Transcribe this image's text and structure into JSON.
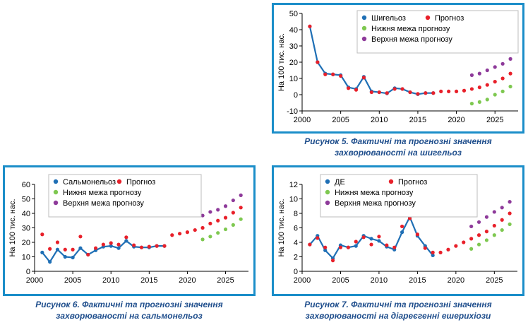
{
  "colors": {
    "frame": "#1b8ec9",
    "actual": "#1f6fb5",
    "forecast": "#e8202a",
    "lower": "#7ec850",
    "upper": "#8e3a9a",
    "caption": "#1f4e8c"
  },
  "chart_data": [
    {
      "id": "fig5",
      "type": "line",
      "caption_line1": "Рисунок 5.  Фактичні та прогнозні значення",
      "caption_line2": "захворюваності на шигельоз",
      "ylabel": "На 100 тис. нас.",
      "xlabel": "",
      "xlim": [
        2000,
        2028
      ],
      "ylim": [
        -10,
        50
      ],
      "xticks": [
        2000,
        2005,
        2010,
        2015,
        2020,
        2025
      ],
      "yticks": [
        -10,
        0,
        10,
        20,
        30,
        40,
        50
      ],
      "grid": false,
      "legend_position": "top-right",
      "legend": {
        "actual": "Шигельоз",
        "forecast": "Прогноз",
        "lower": "Нижня межа прогнозу",
        "upper": "Верхня межа прогнозу"
      },
      "series": [
        {
          "name": "Шигельоз",
          "role": "actual",
          "x": [
            2001,
            2002,
            2003,
            2004,
            2005,
            2006,
            2007,
            2008,
            2009,
            2010,
            2011,
            2012,
            2013,
            2014,
            2015,
            2016,
            2017
          ],
          "y": [
            42,
            20,
            13,
            12.5,
            12,
            4.5,
            3.5,
            11,
            2,
            1.5,
            0.8,
            4,
            3.5,
            1.5,
            0.3,
            1,
            1
          ]
        },
        {
          "name": "Прогноз",
          "role": "forecast",
          "x": [
            2001,
            2002,
            2003,
            2004,
            2005,
            2006,
            2007,
            2008,
            2009,
            2010,
            2011,
            2012,
            2013,
            2014,
            2015,
            2016,
            2017,
            2018,
            2019,
            2020,
            2021,
            2022,
            2023,
            2024,
            2025,
            2026,
            2027
          ],
          "y": [
            42,
            20,
            12.5,
            12.5,
            11.5,
            4,
            3,
            10.5,
            1.5,
            1.5,
            1,
            3.5,
            3.5,
            1.5,
            0.5,
            1,
            1,
            2,
            2,
            2,
            2.5,
            3.5,
            4.5,
            6,
            8,
            10,
            13
          ]
        },
        {
          "name": "Нижня межа прогнозу",
          "role": "lower",
          "x": [
            2022,
            2023,
            2024,
            2025,
            2026,
            2027
          ],
          "y": [
            -5.5,
            -4.5,
            -3,
            0,
            2,
            5
          ]
        },
        {
          "name": "Верхня межа прогнозу",
          "role": "upper",
          "x": [
            2022,
            2023,
            2024,
            2025,
            2026,
            2027
          ],
          "y": [
            12,
            13,
            15,
            17,
            19,
            22
          ]
        }
      ]
    },
    {
      "id": "fig6",
      "type": "line",
      "caption_line1": "Рисунок 6. Фактичні та прогнозні значення",
      "caption_line2": "захворюваності на сальмонельоз",
      "ylabel": "На 100 тис. нас.",
      "xlabel": "",
      "xlim": [
        2000,
        2028
      ],
      "ylim": [
        0,
        60
      ],
      "xticks": [
        2000,
        2005,
        2010,
        2015,
        2020,
        2025
      ],
      "yticks": [
        0,
        10,
        20,
        30,
        40,
        50,
        60
      ],
      "grid": false,
      "legend_position": "top-left",
      "legend": {
        "actual": "Сальмонельоз",
        "forecast": "Прогноз",
        "lower": "Нижня межа прогнозу",
        "upper": "Верхня межа прогнозу"
      },
      "series": [
        {
          "name": "Сальмонельоз",
          "role": "actual",
          "x": [
            2001,
            2002,
            2003,
            2004,
            2005,
            2006,
            2007,
            2008,
            2009,
            2010,
            2011,
            2012,
            2013,
            2014,
            2015,
            2016,
            2017
          ],
          "y": [
            13,
            6.5,
            15,
            10,
            9.5,
            16,
            11.5,
            14.5,
            17,
            17.5,
            16,
            21,
            17,
            16.5,
            16.5,
            17.5,
            17.5
          ]
        },
        {
          "name": "Прогноз",
          "role": "forecast",
          "x": [
            2001,
            2002,
            2003,
            2004,
            2005,
            2006,
            2007,
            2008,
            2009,
            2010,
            2011,
            2012,
            2013,
            2014,
            2015,
            2016,
            2017,
            2018,
            2019,
            2020,
            2021,
            2022,
            2023,
            2024,
            2025,
            2026,
            2027
          ],
          "y": [
            25.5,
            15.5,
            20,
            15,
            15,
            24,
            11.5,
            16,
            18.5,
            19.5,
            18.5,
            23.5,
            18,
            16.5,
            17,
            17.5,
            17.5,
            25,
            26,
            27,
            28.5,
            30,
            33,
            35,
            37,
            40.5,
            44
          ]
        },
        {
          "name": "Нижня межа прогнозу",
          "role": "lower",
          "x": [
            2022,
            2023,
            2024,
            2025,
            2026,
            2027
          ],
          "y": [
            22,
            24,
            26.5,
            29,
            32,
            36
          ]
        },
        {
          "name": "Верхня межа прогнозу",
          "role": "upper",
          "x": [
            2022,
            2023,
            2024,
            2025,
            2026,
            2027
          ],
          "y": [
            38.5,
            41,
            42.5,
            45,
            49,
            52.5
          ]
        }
      ]
    },
    {
      "id": "fig7",
      "type": "line",
      "caption_line1": "Рисунок 7. Фактичні та прогнозні значення",
      "caption_line2": "захворюваності на діареєгенні ешерихіози",
      "ylabel": "На 100 тис. нас.",
      "xlabel": "",
      "xlim": [
        2000,
        2028
      ],
      "ylim": [
        0,
        12
      ],
      "xticks": [
        2000,
        2005,
        2010,
        2015,
        2020,
        2025
      ],
      "yticks": [
        0,
        2,
        4,
        6,
        8,
        10,
        12
      ],
      "grid": false,
      "legend_position": "top-left",
      "legend": {
        "actual": "ДЕ",
        "forecast": "Прогноз",
        "lower": "Нижня межа прогнозу",
        "upper": "Верхня межа прогнозу"
      },
      "series": [
        {
          "name": "ДЕ",
          "role": "actual",
          "x": [
            2001,
            2002,
            2003,
            2004,
            2005,
            2006,
            2007,
            2008,
            2009,
            2010,
            2011,
            2012,
            2013,
            2014,
            2015,
            2016,
            2017
          ],
          "y": [
            3.7,
            4.9,
            2.9,
            1.8,
            3.6,
            3.3,
            3.5,
            4.9,
            4.5,
            4.2,
            3.4,
            3,
            5.4,
            7.5,
            4.9,
            3.5,
            2.2
          ]
        },
        {
          "name": "Прогноз",
          "role": "forecast",
          "x": [
            2001,
            2002,
            2003,
            2004,
            2005,
            2006,
            2007,
            2008,
            2009,
            2010,
            2011,
            2012,
            2013,
            2014,
            2015,
            2016,
            2017,
            2018,
            2019,
            2020,
            2021,
            2022,
            2023,
            2024,
            2025,
            2026,
            2027
          ],
          "y": [
            3.7,
            4.6,
            3.3,
            1.5,
            3.3,
            3.3,
            4.1,
            4.7,
            3.7,
            4.8,
            3.6,
            3.3,
            6.2,
            7.3,
            5.1,
            3.2,
            2.6,
            2.6,
            3,
            3.5,
            4,
            4.5,
            5,
            5.5,
            6.3,
            7.1,
            8
          ]
        },
        {
          "name": "Нижня межа прогнозу",
          "role": "lower",
          "x": [
            2022,
            2023,
            2024,
            2025,
            2026,
            2027
          ],
          "y": [
            3.1,
            3.7,
            4.3,
            5,
            5.7,
            6.5
          ]
        },
        {
          "name": "Верхня межа прогнозу",
          "role": "upper",
          "x": [
            2022,
            2023,
            2024,
            2025,
            2026,
            2027
          ],
          "y": [
            6.2,
            6.8,
            7.5,
            8.2,
            8.8,
            9.6
          ]
        }
      ]
    }
  ]
}
